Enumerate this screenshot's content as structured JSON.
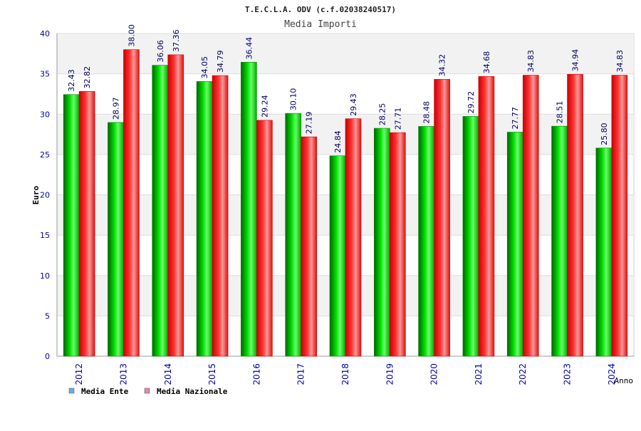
{
  "chart_data": {
    "type": "bar",
    "title": "T.E.C.L.A. ODV (c.f.02038240517)",
    "subtitle": "Media Importi",
    "xlabel": "Anno",
    "ylabel": "Euro",
    "ylim": [
      0,
      40
    ],
    "yticks": [
      "0",
      "5",
      "10",
      "15",
      "20",
      "25",
      "30",
      "35",
      "40"
    ],
    "grid": true,
    "legend_position": "bottom-left",
    "categories": [
      "2012",
      "2013",
      "2014",
      "2015",
      "2016",
      "2017",
      "2018",
      "2019",
      "2020",
      "2021",
      "2022",
      "2023",
      "2024"
    ],
    "series": [
      {
        "name": "Media Ente",
        "color": "#00cc00",
        "legend_color": "#66aaee",
        "values": [
          32.43,
          28.97,
          36.06,
          34.05,
          36.44,
          30.1,
          24.84,
          28.25,
          28.48,
          29.72,
          27.77,
          28.51,
          25.8
        ],
        "labels": [
          "32.43",
          "28.97",
          "36.06",
          "34.05",
          "36.44",
          "30.10",
          "24.84",
          "28.25",
          "28.48",
          "29.72",
          "27.77",
          "28.51",
          "25.80"
        ]
      },
      {
        "name": "Media Nazionale",
        "color": "#ee1111",
        "legend_color": "#dd88aa",
        "values": [
          32.82,
          38.0,
          37.36,
          34.79,
          29.24,
          27.19,
          29.43,
          27.71,
          34.32,
          34.68,
          34.83,
          34.94,
          34.83
        ],
        "labels": [
          "32.82",
          "38.00",
          "37.36",
          "34.79",
          "29.24",
          "27.19",
          "29.43",
          "27.71",
          "34.32",
          "34.68",
          "34.83",
          "34.94",
          "34.83"
        ]
      }
    ]
  }
}
